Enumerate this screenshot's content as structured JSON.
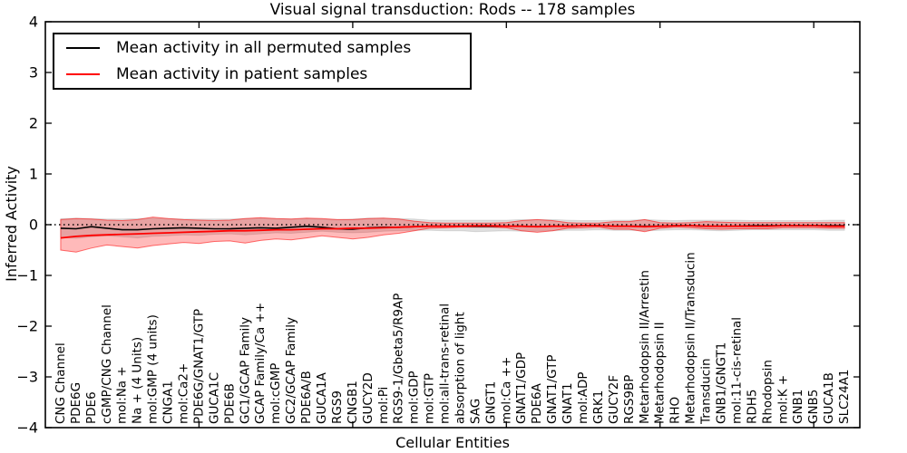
{
  "chart_data": {
    "type": "line",
    "title": "Visual signal transduction: Rods -- 178 samples",
    "xlabel": "Cellular Entities",
    "ylabel": "Inferred Activity",
    "ylim": [
      -4,
      4
    ],
    "yticks": [
      -4,
      -3,
      -2,
      -1,
      0,
      1,
      2,
      3,
      4
    ],
    "xtick_category_indices": [
      9,
      19,
      29,
      39,
      49
    ],
    "grid": false,
    "legend_position": "upper left",
    "zero_line": {
      "y": 0,
      "style": "dotted",
      "color": "#000000"
    },
    "categories": [
      "CNG Channel",
      "PDE6G",
      "PDE6",
      "cGMP/CNG Channel",
      "mol:Na +",
      "Na + (4 Units)",
      "mol:GMP (4 units)",
      "CNGA1",
      "mol:Ca2+",
      "PDE6G/GNAT1/GTP",
      "GUCA1C",
      "PDE6B",
      "GC1/GCAP Family",
      "GCAP Family/Ca ++",
      "mol:cGMP",
      "GC2/GCAP Family",
      "PDE6A/B",
      "GUCA1A",
      "RGS9",
      "CNGB1",
      "GUCY2D",
      "mol:Pi",
      "RGS9-1/Gbeta5/R9AP",
      "mol:GDP",
      "mol:GTP",
      "mol:all-trans-retinal",
      "absorption of light",
      "SAG",
      "GNGT1",
      "mol:Ca ++",
      "GNAT1/GDP",
      "PDE6A",
      "GNAT1/GTP",
      "GNAT1",
      "mol:ADP",
      "GRK1",
      "GUCY2F",
      "RGS9BP",
      "Metarhodopsin II/Arrestin",
      "Metarhodopsin II",
      "RHO",
      "Metarhodopsin II/Transducin",
      "Transducin",
      "GNB1/GNGT1",
      "mol:11-cis-retinal",
      "RDH5",
      "Rhodopsin",
      "mol:K +",
      "GNB1",
      "GNB5",
      "GUCA1B",
      "SLC24A1"
    ],
    "series": [
      {
        "name": "Mean activity in all permuted samples",
        "color": "#000000",
        "band_fill": "rgba(0,0,0,0.13)",
        "band_edge": "rgba(0,0,0,0.10)",
        "values": [
          -0.07,
          -0.08,
          -0.04,
          -0.07,
          -0.1,
          -0.1,
          -0.08,
          -0.07,
          -0.06,
          -0.07,
          -0.08,
          -0.08,
          -0.07,
          -0.06,
          -0.07,
          -0.05,
          -0.03,
          -0.05,
          -0.08,
          -0.09,
          -0.06,
          -0.05,
          -0.05,
          -0.04,
          -0.03,
          -0.03,
          -0.03,
          -0.03,
          -0.03,
          -0.03,
          -0.03,
          -0.04,
          -0.03,
          -0.03,
          -0.02,
          -0.02,
          -0.03,
          -0.03,
          -0.03,
          -0.03,
          -0.02,
          -0.02,
          -0.03,
          -0.03,
          -0.03,
          -0.02,
          -0.02,
          -0.02,
          -0.02,
          -0.02,
          -0.02,
          -0.02
        ],
        "band_upper": [
          0.12,
          0.13,
          0.12,
          0.11,
          0.11,
          0.12,
          0.13,
          0.12,
          0.11,
          0.11,
          0.11,
          0.11,
          0.12,
          0.13,
          0.12,
          0.11,
          0.12,
          0.11,
          0.1,
          0.11,
          0.13,
          0.13,
          0.12,
          0.11,
          0.09,
          0.09,
          0.09,
          0.09,
          0.09,
          0.09,
          0.1,
          0.1,
          0.1,
          0.09,
          0.08,
          0.08,
          0.09,
          0.09,
          0.1,
          0.09,
          0.08,
          0.09,
          0.09,
          0.09,
          0.09,
          0.08,
          0.08,
          0.08,
          0.08,
          0.08,
          0.09,
          0.09
        ],
        "band_lower": [
          -0.25,
          -0.27,
          -0.24,
          -0.22,
          -0.24,
          -0.26,
          -0.23,
          -0.22,
          -0.2,
          -0.21,
          -0.19,
          -0.18,
          -0.2,
          -0.18,
          -0.16,
          -0.17,
          -0.15,
          -0.13,
          -0.15,
          -0.16,
          -0.15,
          -0.13,
          -0.12,
          -0.11,
          -0.11,
          -0.12,
          -0.12,
          -0.14,
          -0.13,
          -0.12,
          -0.13,
          -0.13,
          -0.12,
          -0.11,
          -0.11,
          -0.1,
          -0.11,
          -0.11,
          -0.12,
          -0.11,
          -0.1,
          -0.1,
          -0.11,
          -0.12,
          -0.11,
          -0.1,
          -0.1,
          -0.1,
          -0.1,
          -0.1,
          -0.11,
          -0.11
        ]
      },
      {
        "name": "Mean activity in patient samples",
        "color": "#ff0000",
        "band_fill": "rgba(255,0,0,0.27)",
        "band_edge": "rgba(255,0,0,0.55)",
        "values": [
          -0.26,
          -0.23,
          -0.21,
          -0.2,
          -0.19,
          -0.18,
          -0.17,
          -0.16,
          -0.15,
          -0.14,
          -0.13,
          -0.12,
          -0.12,
          -0.11,
          -0.1,
          -0.1,
          -0.09,
          -0.08,
          -0.08,
          -0.07,
          -0.07,
          -0.06,
          -0.05,
          -0.04,
          -0.03,
          -0.03,
          -0.03,
          -0.02,
          -0.02,
          -0.03,
          -0.03,
          -0.04,
          -0.03,
          -0.03,
          -0.02,
          -0.02,
          -0.03,
          -0.03,
          -0.04,
          -0.03,
          -0.02,
          -0.02,
          -0.03,
          -0.03,
          -0.03,
          -0.03,
          -0.03,
          -0.02,
          -0.02,
          -0.02,
          -0.03,
          -0.03
        ],
        "band_upper": [
          0.1,
          0.12,
          0.11,
          0.09,
          0.08,
          0.1,
          0.15,
          0.12,
          0.1,
          0.09,
          0.08,
          0.09,
          0.12,
          0.14,
          0.12,
          0.11,
          0.13,
          0.12,
          0.1,
          0.1,
          0.12,
          0.13,
          0.11,
          0.07,
          0.04,
          0.03,
          0.03,
          0.03,
          0.03,
          0.04,
          0.08,
          0.1,
          0.08,
          0.04,
          0.03,
          0.03,
          0.06,
          0.06,
          0.1,
          0.04,
          0.03,
          0.04,
          0.06,
          0.05,
          0.04,
          0.04,
          0.04,
          0.04,
          0.04,
          0.04,
          0.04,
          0.04
        ],
        "band_lower": [
          -0.5,
          -0.54,
          -0.46,
          -0.4,
          -0.43,
          -0.46,
          -0.41,
          -0.38,
          -0.35,
          -0.37,
          -0.33,
          -0.32,
          -0.36,
          -0.31,
          -0.28,
          -0.3,
          -0.26,
          -0.22,
          -0.25,
          -0.28,
          -0.25,
          -0.2,
          -0.17,
          -0.12,
          -0.07,
          -0.06,
          -0.05,
          -0.05,
          -0.05,
          -0.06,
          -0.12,
          -0.15,
          -0.12,
          -0.07,
          -0.06,
          -0.05,
          -0.09,
          -0.09,
          -0.14,
          -0.07,
          -0.05,
          -0.06,
          -0.08,
          -0.09,
          -0.08,
          -0.08,
          -0.08,
          -0.06,
          -0.06,
          -0.06,
          -0.07,
          -0.07
        ]
      }
    ]
  },
  "colors": {
    "frame": "#000000",
    "background": "#ffffff"
  }
}
